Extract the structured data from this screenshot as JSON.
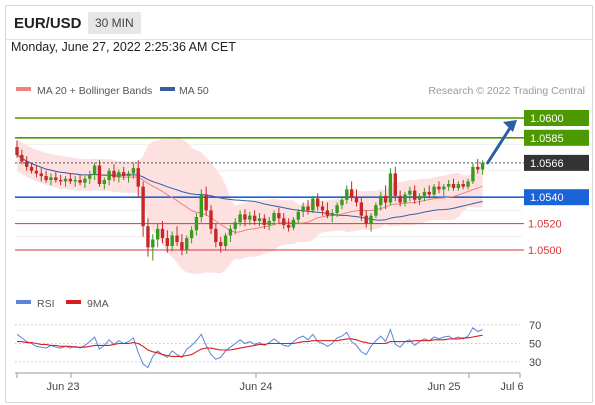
{
  "header": {
    "pair": "EUR/USD",
    "timeframe": "30 MIN"
  },
  "datetime": "Monday, June 27, 2022 2:25:36 AM CET",
  "legend": {
    "ma20_label": "MA 20 + Bollinger Bands",
    "ma50_label": "MA 50",
    "credit": "Research © 2022 Trading Central"
  },
  "rsi_legend": {
    "rsi_label": "RSI",
    "ma_label": "9MA"
  },
  "colors": {
    "green": "#4c9a00",
    "blue": "#1a63d8",
    "red": "#d93636",
    "current": "#333333",
    "band": "#fde1e1",
    "ma20": "#f08080",
    "ma50": "#3a5fa0",
    "bull": "#3a9a1e",
    "bear": "#c62828",
    "rsi": "#5b84d8",
    "rsi_ma": "#d62020"
  },
  "chart_data": {
    "type": "candlestick",
    "price_levels": [
      {
        "value": "1.0600",
        "role": "target",
        "kind": "green"
      },
      {
        "value": "1.0585",
        "role": "resistance",
        "kind": "green"
      },
      {
        "value": "1.0566",
        "role": "last price",
        "kind": "current"
      },
      {
        "value": "1.0540",
        "role": "pivot",
        "kind": "blue"
      },
      {
        "value": "1.0520",
        "role": "support",
        "kind": "red"
      },
      {
        "value": "1.0500",
        "role": "support",
        "kind": "red"
      }
    ],
    "x_ticks": [
      "Jun 23",
      "Jun 24",
      "Jun 25",
      "Jul 6"
    ],
    "rsi_levels": [
      "70",
      "50",
      "30"
    ],
    "ohlc": [
      [
        1.0578,
        1.0583,
        1.057,
        1.0572
      ],
      [
        1.0572,
        1.0576,
        1.0565,
        1.0567
      ],
      [
        1.0567,
        1.0571,
        1.056,
        1.0563
      ],
      [
        1.0563,
        1.0566,
        1.0558,
        1.056
      ],
      [
        1.056,
        1.0564,
        1.0555,
        1.0558
      ],
      [
        1.0558,
        1.0562,
        1.0552,
        1.0556
      ],
      [
        1.0556,
        1.056,
        1.0551,
        1.0553
      ],
      [
        1.0553,
        1.0558,
        1.0549,
        1.0555
      ],
      [
        1.0555,
        1.0559,
        1.0551,
        1.0553
      ],
      [
        1.0553,
        1.0557,
        1.0549,
        1.0552
      ],
      [
        1.0552,
        1.0556,
        1.0548,
        1.0554
      ],
      [
        1.0554,
        1.0558,
        1.055,
        1.0552
      ],
      [
        1.0552,
        1.0556,
        1.0548,
        1.0553
      ],
      [
        1.0553,
        1.0557,
        1.0549,
        1.0551
      ],
      [
        1.0551,
        1.0556,
        1.0547,
        1.0554
      ],
      [
        1.0554,
        1.056,
        1.055,
        1.0557
      ],
      [
        1.0557,
        1.0566,
        1.0553,
        1.0564
      ],
      [
        1.0564,
        1.0568,
        1.0548,
        1.055
      ],
      [
        1.055,
        1.0555,
        1.0546,
        1.0553
      ],
      [
        1.0553,
        1.0562,
        1.0549,
        1.056
      ],
      [
        1.056,
        1.0565,
        1.0552,
        1.0555
      ],
      [
        1.0555,
        1.0561,
        1.0551,
        1.0559
      ],
      [
        1.0559,
        1.0563,
        1.0553,
        1.0556
      ],
      [
        1.0556,
        1.056,
        1.0551,
        1.0558
      ],
      [
        1.0558,
        1.0566,
        1.0554,
        1.0562
      ],
      [
        1.0562,
        1.0568,
        1.054,
        1.0548
      ],
      [
        1.0548,
        1.0552,
        1.051,
        1.0518
      ],
      [
        1.0518,
        1.0524,
        1.0495,
        1.0502
      ],
      [
        1.0502,
        1.0512,
        1.0492,
        1.0508
      ],
      [
        1.0508,
        1.052,
        1.0502,
        1.0516
      ],
      [
        1.0516,
        1.0522,
        1.0505,
        1.0509
      ],
      [
        1.0509,
        1.0515,
        1.0498,
        1.0503
      ],
      [
        1.0503,
        1.0514,
        1.0499,
        1.0511
      ],
      [
        1.0511,
        1.0518,
        1.0503,
        1.0506
      ],
      [
        1.0506,
        1.0512,
        1.0496,
        1.05
      ],
      [
        1.05,
        1.0511,
        1.0497,
        1.0509
      ],
      [
        1.0509,
        1.0518,
        1.0505,
        1.0515
      ],
      [
        1.0515,
        1.0528,
        1.0511,
        1.0525
      ],
      [
        1.0525,
        1.0546,
        1.0521,
        1.0542
      ],
      [
        1.0542,
        1.0548,
        1.0526,
        1.053
      ],
      [
        1.053,
        1.0534,
        1.0512,
        1.0516
      ],
      [
        1.0516,
        1.052,
        1.0502,
        1.0506
      ],
      [
        1.0506,
        1.051,
        1.0498,
        1.0503
      ],
      [
        1.0503,
        1.0513,
        1.05,
        1.0511
      ],
      [
        1.0511,
        1.0519,
        1.0506,
        1.0516
      ],
      [
        1.0516,
        1.0524,
        1.0512,
        1.0521
      ],
      [
        1.0521,
        1.053,
        1.0518,
        1.0527
      ],
      [
        1.0527,
        1.0531,
        1.0518,
        1.0523
      ],
      [
        1.0523,
        1.0529,
        1.0519,
        1.0526
      ],
      [
        1.0526,
        1.053,
        1.0519,
        1.0522
      ],
      [
        1.0522,
        1.0528,
        1.0518,
        1.0524
      ],
      [
        1.0524,
        1.0527,
        1.0516,
        1.0519
      ],
      [
        1.0519,
        1.0525,
        1.0515,
        1.0522
      ],
      [
        1.0522,
        1.053,
        1.0519,
        1.0528
      ],
      [
        1.0528,
        1.0532,
        1.052,
        1.0524
      ],
      [
        1.0524,
        1.0528,
        1.0516,
        1.0519
      ],
      [
        1.0519,
        1.0524,
        1.0514,
        1.0517
      ],
      [
        1.0517,
        1.0525,
        1.0515,
        1.0523
      ],
      [
        1.0523,
        1.0531,
        1.052,
        1.0529
      ],
      [
        1.0529,
        1.0536,
        1.0525,
        1.0533
      ],
      [
        1.0533,
        1.0538,
        1.0527,
        1.053
      ],
      [
        1.053,
        1.0541,
        1.0528,
        1.0539
      ],
      [
        1.0539,
        1.0543,
        1.053,
        1.0533
      ],
      [
        1.0533,
        1.0537,
        1.0526,
        1.053
      ],
      [
        1.053,
        1.0536,
        1.0524,
        1.0526
      ],
      [
        1.0526,
        1.0531,
        1.0521,
        1.0528
      ],
      [
        1.0528,
        1.0536,
        1.0525,
        1.0534
      ],
      [
        1.0534,
        1.0541,
        1.0531,
        1.0538
      ],
      [
        1.0538,
        1.0549,
        1.0535,
        1.0546
      ],
      [
        1.0546,
        1.0552,
        1.0537,
        1.054
      ],
      [
        1.054,
        1.0546,
        1.0533,
        1.0536
      ],
      [
        1.0536,
        1.054,
        1.0522,
        1.0526
      ],
      [
        1.0526,
        1.053,
        1.0517,
        1.052
      ],
      [
        1.052,
        1.0528,
        1.0514,
        1.0526
      ],
      [
        1.0526,
        1.0536,
        1.0524,
        1.0534
      ],
      [
        1.0534,
        1.0544,
        1.053,
        1.0541
      ],
      [
        1.0541,
        1.0549,
        1.0531,
        1.0536
      ],
      [
        1.0536,
        1.0562,
        1.0534,
        1.0558
      ],
      [
        1.0558,
        1.0563,
        1.0537,
        1.0541
      ],
      [
        1.0541,
        1.0545,
        1.0533,
        1.0536
      ],
      [
        1.0536,
        1.0544,
        1.0533,
        1.0542
      ],
      [
        1.0542,
        1.0548,
        1.0537,
        1.0545
      ],
      [
        1.0545,
        1.0549,
        1.0535,
        1.0538
      ],
      [
        1.0538,
        1.0543,
        1.0534,
        1.0541
      ],
      [
        1.0541,
        1.0547,
        1.0537,
        1.0544
      ],
      [
        1.0544,
        1.0549,
        1.0539,
        1.0542
      ],
      [
        1.0542,
        1.055,
        1.054,
        1.0548
      ],
      [
        1.0548,
        1.0552,
        1.0543,
        1.0546
      ],
      [
        1.0546,
        1.055,
        1.0541,
        1.0548
      ],
      [
        1.0548,
        1.0553,
        1.0545,
        1.055
      ],
      [
        1.055,
        1.0554,
        1.0545,
        1.0547
      ],
      [
        1.0547,
        1.0552,
        1.0545,
        1.055
      ],
      [
        1.055,
        1.0553,
        1.0546,
        1.0548
      ],
      [
        1.0548,
        1.0554,
        1.0546,
        1.0552
      ],
      [
        1.0552,
        1.0566,
        1.055,
        1.0563
      ],
      [
        1.0563,
        1.0569,
        1.0558,
        1.0561
      ],
      [
        1.0561,
        1.0568,
        1.0557,
        1.0566
      ]
    ],
    "rsi": [
      60,
      56,
      52,
      50,
      47,
      46,
      45,
      48,
      46,
      45,
      47,
      45,
      47,
      45,
      48,
      52,
      57,
      44,
      48,
      54,
      49,
      53,
      50,
      52,
      56,
      40,
      28,
      24,
      36,
      42,
      38,
      35,
      42,
      38,
      35,
      44,
      48,
      53,
      60,
      48,
      38,
      33,
      35,
      42,
      46,
      50,
      54,
      50,
      52,
      49,
      51,
      48,
      51,
      55,
      51,
      48,
      47,
      52,
      56,
      58,
      54,
      60,
      52,
      50,
      47,
      50,
      56,
      58,
      62,
      52,
      48,
      41,
      38,
      47,
      53,
      58,
      52,
      65,
      49,
      46,
      52,
      54,
      48,
      52,
      55,
      53,
      57,
      55,
      57,
      58,
      55,
      57,
      55,
      58,
      67,
      63,
      65
    ],
    "rsi_ma": [
      52,
      52,
      51,
      51,
      50,
      49,
      49,
      48,
      48,
      47,
      47,
      47,
      46,
      46,
      46,
      47,
      48,
      48,
      48,
      48,
      49,
      50,
      50,
      50,
      51,
      50,
      47,
      43,
      41,
      40,
      38,
      37,
      36,
      36,
      36,
      37,
      38,
      41,
      44,
      45,
      45,
      44,
      43,
      43,
      43,
      44,
      45,
      46,
      47,
      48,
      49,
      49,
      50,
      50,
      50,
      50,
      50,
      50,
      51,
      52,
      52,
      53,
      53,
      53,
      53,
      53,
      53,
      54,
      55,
      55,
      54,
      52,
      51,
      50,
      50,
      50,
      50,
      52,
      52,
      52,
      52,
      52,
      53,
      53,
      53,
      53,
      54,
      54,
      54,
      55,
      55,
      55,
      56,
      56,
      57,
      58,
      59
    ]
  }
}
